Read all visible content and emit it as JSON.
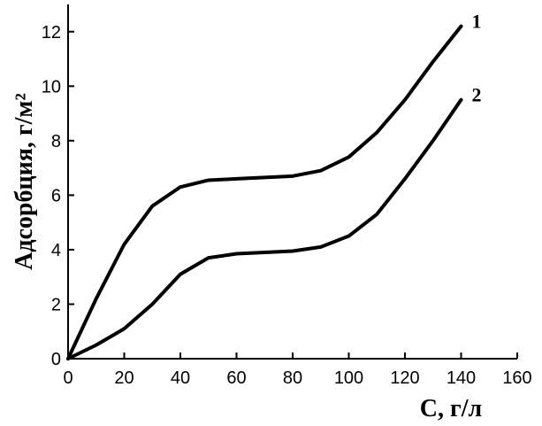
{
  "chart_data": {
    "type": "line",
    "x_label": "C, г/л",
    "y_label": "Адсорбция, г/м²",
    "x": [
      0,
      10,
      20,
      30,
      40,
      50,
      60,
      70,
      80,
      90,
      100,
      110,
      120,
      130,
      140
    ],
    "series": [
      {
        "name": "1",
        "color": "#000000",
        "values": [
          0,
          2.2,
          4.2,
          5.6,
          6.3,
          6.55,
          6.6,
          6.65,
          6.7,
          6.9,
          7.4,
          8.3,
          9.5,
          10.9,
          12.2
        ]
      },
      {
        "name": "2",
        "color": "#000000",
        "values": [
          0,
          0.5,
          1.1,
          2.0,
          3.1,
          3.7,
          3.85,
          3.9,
          3.95,
          4.1,
          4.5,
          5.3,
          6.6,
          8.0,
          9.5
        ]
      }
    ],
    "xlim": [
      0,
      160
    ],
    "ylim": [
      0,
      13
    ],
    "xticks": [
      0,
      20,
      40,
      60,
      80,
      100,
      120,
      140,
      160
    ],
    "yticks": [
      0,
      2,
      4,
      6,
      8,
      10,
      12
    ]
  }
}
